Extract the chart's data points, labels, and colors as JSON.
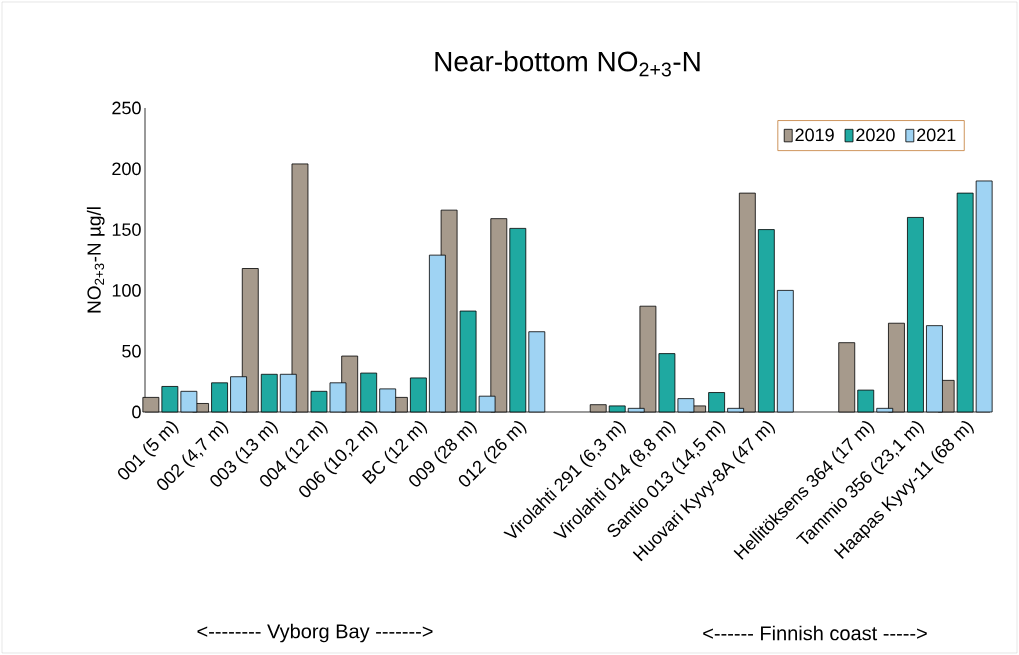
{
  "chart_data": {
    "type": "bar",
    "title": "Near-bottom NO$_{2+3}$-N",
    "ylabel": "NO$_{2+3}$-N µg/l",
    "categories": [
      "001 (5 m)",
      "002 (4,7 m)",
      "003 (13 m)",
      "004 (12 m)",
      "006 (10,2 m)",
      "BC (12 m)",
      "009 (28 m)",
      "012 (26 m)",
      null,
      "Virolahti 291 (6,3 m)",
      "Virolahti 014 (8,8 m)",
      "Santio 013 (14,5 m)",
      "Huovari Kyvy-8A (47 m)",
      null,
      "Hellitöksens 364 (17 m)",
      "Tammio 356 (23,1 m)",
      "Haapas Kyvy-11 (68 m)"
    ],
    "series": [
      {
        "name": "2019",
        "color": "#a69a8c",
        "values": [
          12,
          7,
          118,
          204,
          46,
          12,
          166,
          159,
          null,
          6,
          87,
          5,
          180,
          null,
          57,
          73,
          26
        ]
      },
      {
        "name": "2020",
        "color": "#1fa9a1",
        "values": [
          21,
          24,
          31,
          17,
          32,
          28,
          83,
          151,
          null,
          5,
          48,
          16,
          150,
          null,
          18,
          160,
          180
        ]
      },
      {
        "name": "2021",
        "color": "#9fd3f3",
        "values": [
          17,
          29,
          31,
          24,
          19,
          129,
          13,
          66,
          null,
          3,
          11,
          3,
          100,
          null,
          3,
          71,
          190
        ]
      }
    ],
    "ylim": [
      0,
      250
    ],
    "yticks": [
      0,
      50,
      100,
      150,
      200,
      250
    ],
    "legend": "top right",
    "annotations": [
      "<-------- Vyborg Bay ------->",
      "<------ Finnish coast ----->"
    ]
  }
}
